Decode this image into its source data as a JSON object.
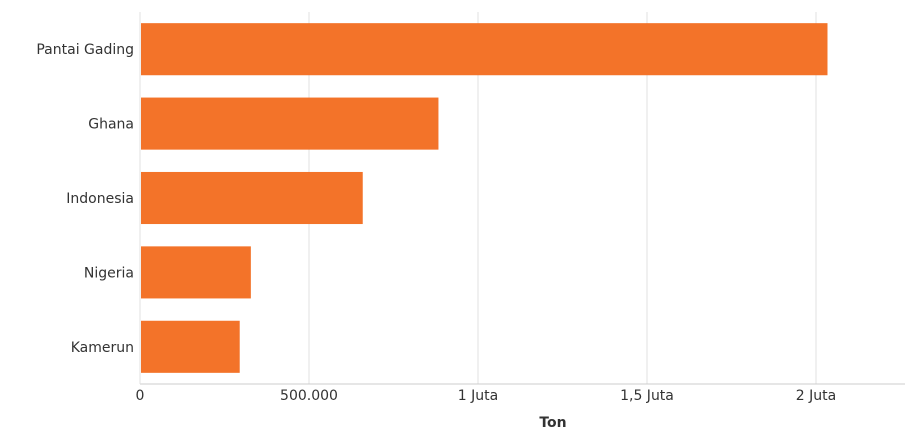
{
  "chart_data": {
    "type": "bar",
    "orientation": "horizontal",
    "categories": [
      "Pantai Gading",
      "Ghana",
      "Indonesia",
      "Nigeria",
      "Kamerun"
    ],
    "values": [
      2034000,
      883000,
      659000,
      328000,
      295000
    ],
    "xlabel": "Ton",
    "ylabel": "",
    "xlim": [
      0,
      2300000
    ],
    "ticks": [
      {
        "value": 0,
        "label": "0"
      },
      {
        "value": 500000,
        "label": "500.000"
      },
      {
        "value": 1000000,
        "label": "1 Juta"
      },
      {
        "value": 1500000,
        "label": "1,5 Juta"
      },
      {
        "value": 2000000,
        "label": "2 Juta"
      }
    ],
    "grid": true,
    "bar_color": "#f37329"
  }
}
